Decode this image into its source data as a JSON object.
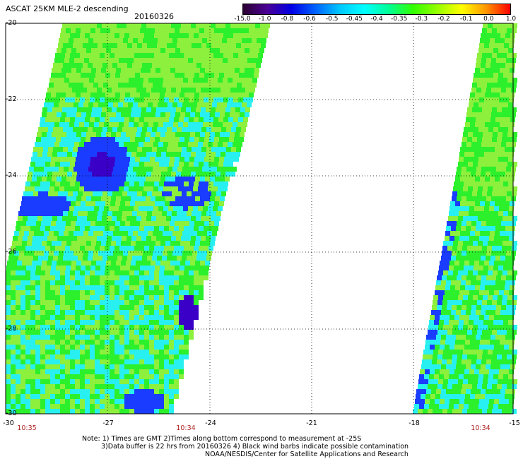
{
  "header": {
    "title": "ASCAT 25KM MLE-2 descending",
    "date": "20160326"
  },
  "colorbar": {
    "colors": [
      "#2a0030",
      "#4b0096",
      "#0000e6",
      "#0064ff",
      "#00c8ff",
      "#00ffff",
      "#00ff96",
      "#32ff00",
      "#96ff00",
      "#ffff00",
      "#ff9600",
      "#ff0000"
    ],
    "labels": [
      "-15.0",
      "-1.0",
      "-0.8",
      "-0.6",
      "-0.5",
      "-0.45",
      "-0.4",
      "-0.35",
      "-0.3",
      "-0.2",
      "-0.1",
      "0.0",
      "1.0"
    ]
  },
  "axes": {
    "lat_labels": [
      "-20",
      "-22",
      "-24",
      "-26",
      "-28",
      "-30"
    ],
    "lon_labels": [
      "-30",
      "-27",
      "-24",
      "-21",
      "-18",
      "-15"
    ]
  },
  "time_labels": [
    "10:35",
    "10:34",
    "10:34"
  ],
  "notes": {
    "line1": "Note: 1) Times are GMT 2)Times along bottom correspond to measurement at -25S",
    "line2": "3)Data buffer is 22 hrs from 20160326 4) Black wind barbs indicate possible contamination",
    "line3": "NOAA/NESDIS/Center for Satellite Applications and Research"
  },
  "swaths": {
    "colors": {
      "green": "#2cf02c",
      "lime": "#8cf03c",
      "cyan": "#28f0f0",
      "blue": "#1a3cff",
      "navy": "#3a00c8",
      "purple": "#50008c"
    }
  }
}
